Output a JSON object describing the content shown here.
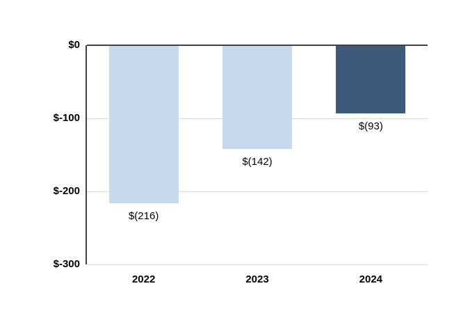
{
  "chart_data": {
    "type": "bar",
    "title": "",
    "xlabel": "",
    "ylabel": "",
    "categories": [
      "2022",
      "2023",
      "2024"
    ],
    "values": [
      -216,
      -142,
      -93
    ],
    "data_labels": [
      "$(216)",
      "$(142)",
      "$(93)"
    ],
    "bar_colors": [
      "#c5dbed",
      "#c5dbed",
      "#3d5a78"
    ],
    "ylim": [
      -300,
      0
    ],
    "ytick_values": [
      0,
      -100,
      -200,
      -300
    ],
    "ytick_labels": [
      "$0",
      "$-100",
      "$-200",
      "$-300"
    ],
    "grid": true,
    "legend": false,
    "colors": {
      "light_bar": "#c5dbed",
      "dark_bar": "#3d5a78",
      "axis_line": "#404040",
      "gridline": "#d9d9d9",
      "text": "#000000",
      "background": "#ffffff"
    }
  }
}
